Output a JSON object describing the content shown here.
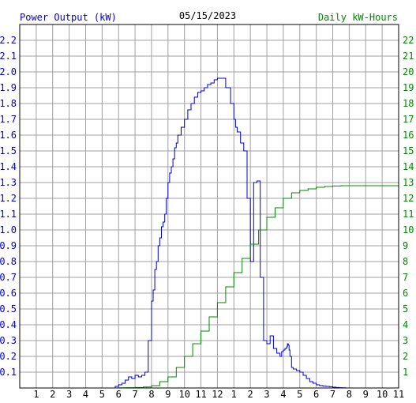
{
  "header": {
    "left_label": "Power Output (kW)",
    "date": "05/15/2023",
    "right_label": "Daily kW-Hours"
  },
  "colors": {
    "power": "#0000cc",
    "energy": "#008800",
    "grid": "#a0a0a0",
    "frame": "#000000",
    "text": "#000000"
  },
  "chart_data": {
    "type": "line",
    "title": "05/15/2023",
    "grid": true,
    "x_ticks": [
      "1",
      "2",
      "3",
      "4",
      "5",
      "6",
      "7",
      "8",
      "9",
      "10",
      "11",
      "12",
      "1",
      "2",
      "3",
      "4",
      "5",
      "6",
      "7",
      "8",
      "9",
      "10",
      "11"
    ],
    "x_range": [
      0,
      23
    ],
    "y_left": {
      "label": "Power Output (kW)",
      "range": [
        0,
        2.3
      ],
      "ticks": [
        "0.1",
        "0.2",
        "0.3",
        "0.4",
        "0.5",
        "0.6",
        "0.7",
        "0.8",
        "0.9",
        "1.0",
        "1.1",
        "1.2",
        "1.3",
        "1.4",
        "1.5",
        "1.6",
        "1.7",
        "1.8",
        "1.9",
        "2.0",
        "2.1",
        "2.2"
      ]
    },
    "y_right": {
      "label": "Daily kW-Hours",
      "range": [
        0,
        23
      ],
      "ticks": [
        "1",
        "2",
        "3",
        "4",
        "5",
        "6",
        "7",
        "8",
        "9",
        "10",
        "11",
        "12",
        "13",
        "14",
        "15",
        "16",
        "17",
        "18",
        "19",
        "20",
        "21",
        "22"
      ]
    },
    "series": [
      {
        "name": "Power Output (kW)",
        "axis": "left",
        "color": "#0000cc",
        "x": [
          5.5,
          5.8,
          6.0,
          6.2,
          6.4,
          6.6,
          6.8,
          7.0,
          7.2,
          7.4,
          7.6,
          7.8,
          8.0,
          8.1,
          8.2,
          8.3,
          8.4,
          8.5,
          8.6,
          8.7,
          8.8,
          8.9,
          9.0,
          9.1,
          9.2,
          9.3,
          9.4,
          9.5,
          9.6,
          9.8,
          10.0,
          10.2,
          10.4,
          10.6,
          10.8,
          11.0,
          11.2,
          11.4,
          11.6,
          11.8,
          12.0,
          12.2,
          12.5,
          12.8,
          13.0,
          13.1,
          13.2,
          13.4,
          13.6,
          13.8,
          14.0,
          14.2,
          14.4,
          14.6,
          14.8,
          15.0,
          15.2,
          15.4,
          15.6,
          15.8,
          15.9,
          16.0,
          16.1,
          16.2,
          16.25,
          16.3,
          16.35,
          16.4,
          16.5,
          16.6,
          16.8,
          17.0,
          17.2,
          17.4,
          17.6,
          17.8,
          18.0,
          18.2,
          18.4,
          18.6,
          18.8,
          19.0,
          19.2,
          19.4,
          19.6,
          19.8,
          20.0,
          20.3,
          20.6
        ],
        "y": [
          0.0,
          0.01,
          0.02,
          0.03,
          0.05,
          0.07,
          0.06,
          0.08,
          0.07,
          0.08,
          0.1,
          0.3,
          0.55,
          0.62,
          0.75,
          0.8,
          0.9,
          0.95,
          1.02,
          1.05,
          1.1,
          1.2,
          1.3,
          1.36,
          1.4,
          1.45,
          1.52,
          1.55,
          1.6,
          1.65,
          1.7,
          1.76,
          1.8,
          1.84,
          1.87,
          1.88,
          1.9,
          1.92,
          1.93,
          1.95,
          1.96,
          1.96,
          1.9,
          1.8,
          1.7,
          1.65,
          1.62,
          1.55,
          1.5,
          1.2,
          0.8,
          1.3,
          1.31,
          0.7,
          0.3,
          0.28,
          0.33,
          0.25,
          0.22,
          0.2,
          0.23,
          0.24,
          0.25,
          0.26,
          0.28,
          0.27,
          0.24,
          0.2,
          0.13,
          0.12,
          0.11,
          0.1,
          0.08,
          0.06,
          0.04,
          0.03,
          0.02,
          0.015,
          0.012,
          0.01,
          0.008,
          0.005,
          0.003,
          0.002,
          0.001,
          0.0,
          0.0,
          0.0,
          0.0
        ]
      },
      {
        "name": "Daily kW-Hours",
        "axis": "right",
        "color": "#008800",
        "x": [
          5.5,
          6.0,
          6.5,
          7.0,
          7.5,
          8.0,
          8.5,
          9.0,
          9.5,
          10.0,
          10.5,
          11.0,
          11.5,
          12.0,
          12.5,
          13.0,
          13.5,
          14.0,
          14.5,
          15.0,
          15.5,
          16.0,
          16.5,
          17.0,
          17.5,
          18.0,
          18.5,
          19.0,
          19.5,
          20.0,
          20.5,
          21.0,
          21.5,
          22.0,
          22.5,
          23.0
        ],
        "y": [
          0.0,
          0.01,
          0.02,
          0.03,
          0.06,
          0.15,
          0.4,
          0.7,
          1.3,
          2.0,
          2.8,
          3.6,
          4.5,
          5.4,
          6.4,
          7.3,
          8.2,
          9.1,
          10.0,
          10.8,
          11.4,
          12.0,
          12.35,
          12.5,
          12.6,
          12.7,
          12.75,
          12.78,
          12.8,
          12.8,
          12.8,
          12.8,
          12.8,
          12.8,
          12.8,
          12.8
        ]
      }
    ]
  }
}
